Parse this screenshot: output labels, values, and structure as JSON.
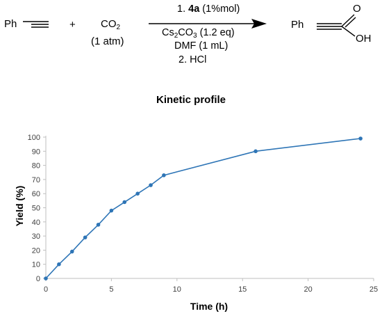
{
  "scheme": {
    "reactant1": "Ph",
    "plus": "+",
    "reactant2": "CO",
    "reactant2_sub": "2",
    "reactant2_condition": "(1 atm)",
    "step1_prefix": "1.",
    "catalyst": "4a",
    "catalyst_loading": "(1%mol)",
    "base": "Cs",
    "base_sub1": "2",
    "base_mid": "CO",
    "base_sub2": "3",
    "base_amount": "(1.2 eq)",
    "solvent": "DMF (1 mL)",
    "step2": "2. HCl",
    "product_ph": "Ph",
    "product_o": "O",
    "product_oh": "OH"
  },
  "chart_data": {
    "type": "line",
    "title": "Kinetic profile",
    "xlabel": "Time (h)",
    "ylabel": "Yield (%)",
    "xlim": [
      0,
      25
    ],
    "ylim": [
      0,
      100
    ],
    "xticks": [
      0,
      5,
      10,
      15,
      20,
      25
    ],
    "yticks": [
      0,
      10,
      20,
      30,
      40,
      50,
      60,
      70,
      80,
      90,
      100
    ],
    "grid": false,
    "color": "#2e75b6",
    "series": [
      {
        "x": [
          0,
          1,
          2,
          3,
          4,
          5,
          6,
          7,
          8,
          9,
          16,
          24
        ],
        "y": [
          0,
          10,
          19,
          29,
          38,
          48,
          54,
          60,
          66,
          73,
          90,
          99
        ]
      }
    ]
  }
}
